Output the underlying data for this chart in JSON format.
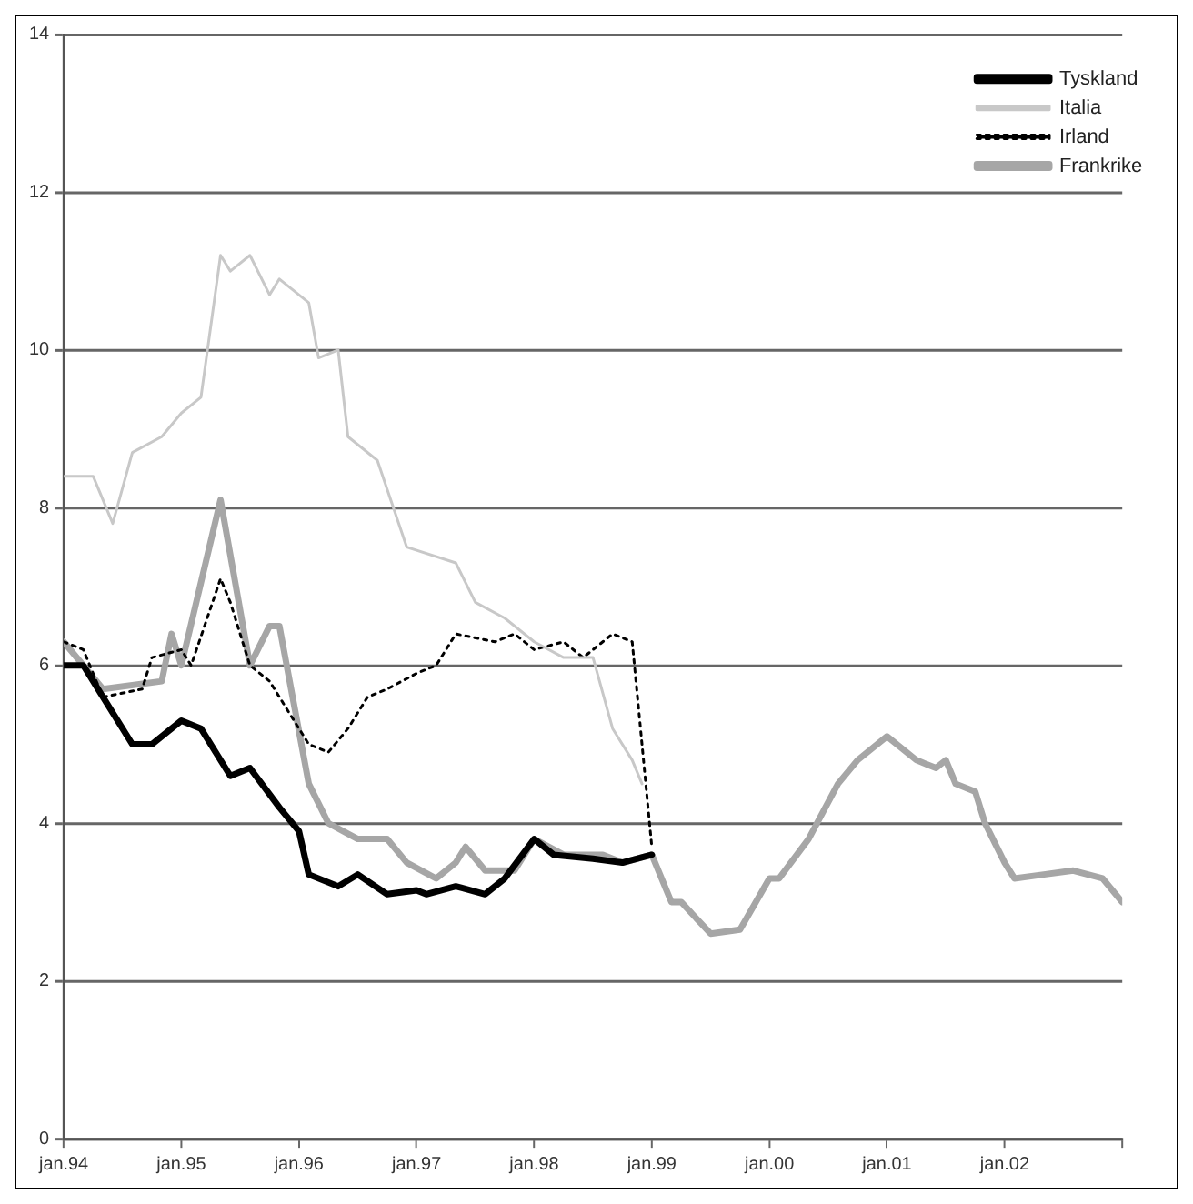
{
  "chart_data": {
    "type": "line",
    "xlim": [
      "1994-01",
      "2003-01"
    ],
    "xticks": [
      {
        "value": "1994-01",
        "label": "jan.94"
      },
      {
        "value": "1995-01",
        "label": "jan.95"
      },
      {
        "value": "1996-01",
        "label": "jan.96"
      },
      {
        "value": "1997-01",
        "label": "jan.97"
      },
      {
        "value": "1998-01",
        "label": "jan.98"
      },
      {
        "value": "1999-01",
        "label": "jan.99"
      },
      {
        "value": "2000-01",
        "label": "jan.00"
      },
      {
        "value": "2001-01",
        "label": "jan.01"
      },
      {
        "value": "2002-01",
        "label": "jan.02"
      },
      {
        "value": "2003-01",
        "label": null
      }
    ],
    "ylim": [
      0,
      14
    ],
    "yticks": [
      0,
      2,
      4,
      6,
      8,
      10,
      12,
      14
    ],
    "grid": "y",
    "legend": "top right",
    "marker": "none",
    "series": [
      {
        "name": "Tyskland",
        "color": "#000000",
        "line_style": "solid",
        "x": [
          "1994-01",
          "1994-03",
          "1994-08",
          "1994-10",
          "1995-01",
          "1995-03",
          "1995-06",
          "1995-08",
          "1995-11",
          "1996-01",
          "1996-02",
          "1996-05",
          "1996-07",
          "1996-10",
          "1997-01",
          "1997-02",
          "1997-05",
          "1997-08",
          "1997-10",
          "1998-01",
          "1998-03",
          "1998-07",
          "1998-10",
          "1999-01"
        ],
        "values": [
          6.0,
          6.0,
          5.0,
          5.0,
          5.3,
          5.2,
          4.6,
          4.7,
          4.2,
          3.9,
          3.35,
          3.2,
          3.35,
          3.1,
          3.15,
          3.1,
          3.2,
          3.1,
          3.3,
          3.8,
          3.6,
          3.55,
          3.5,
          3.6
        ]
      },
      {
        "name": "Italia",
        "color": "#c8c8c8",
        "line_style": "solid",
        "x": [
          "1994-01",
          "1994-04",
          "1994-06",
          "1994-08",
          "1994-11",
          "1995-01",
          "1995-03",
          "1995-05",
          "1995-06",
          "1995-08",
          "1995-10",
          "1995-11",
          "1996-02",
          "1996-03",
          "1996-05",
          "1996-06",
          "1996-09",
          "1996-12",
          "1997-05",
          "1997-07",
          "1997-10",
          "1998-01",
          "1998-04",
          "1998-07",
          "1998-09",
          "1998-11",
          "1998-12"
        ],
        "values": [
          8.4,
          8.4,
          7.8,
          8.7,
          8.9,
          9.2,
          9.4,
          11.2,
          11.0,
          11.2,
          10.7,
          10.9,
          10.6,
          9.9,
          10.0,
          8.9,
          8.6,
          7.5,
          7.3,
          6.8,
          6.6,
          6.3,
          6.1,
          6.1,
          5.2,
          4.8,
          4.5
        ]
      },
      {
        "name": "Irland",
        "color": "#000000",
        "line_style": "dotted",
        "x": [
          "1994-01",
          "1994-03",
          "1994-05",
          "1994-09",
          "1994-10",
          "1995-01",
          "1995-02",
          "1995-05",
          "1995-06",
          "1995-08",
          "1995-10",
          "1995-12",
          "1996-02",
          "1996-04",
          "1996-06",
          "1996-08",
          "1996-10",
          "1997-01",
          "1997-03",
          "1997-05",
          "1997-09",
          "1997-11",
          "1998-01",
          "1998-04",
          "1998-06",
          "1998-09",
          "1998-11",
          "1998-12",
          "1999-01"
        ],
        "values": [
          6.3,
          6.2,
          5.6,
          5.7,
          6.1,
          6.2,
          6.0,
          7.1,
          6.8,
          6.0,
          5.8,
          5.4,
          5.0,
          4.9,
          5.2,
          5.6,
          5.7,
          5.9,
          6.0,
          6.4,
          6.3,
          6.4,
          6.2,
          6.3,
          6.1,
          6.4,
          6.3,
          5.0,
          3.7
        ]
      },
      {
        "name": "Frankrike",
        "color": "#a6a6a6",
        "line_style": "solid",
        "x": [
          "1994-01",
          "1994-05",
          "1994-11",
          "1994-12",
          "1995-01",
          "1995-05",
          "1995-08",
          "1995-10",
          "1995-11",
          "1996-02",
          "1996-04",
          "1996-07",
          "1996-10",
          "1996-12",
          "1997-03",
          "1997-05",
          "1997-06",
          "1997-08",
          "1997-11",
          "1998-01",
          "1998-04",
          "1998-08",
          "1998-10",
          "1999-01",
          "1999-03",
          "1999-04",
          "1999-07",
          "1999-10",
          "2000-01",
          "2000-02",
          "2000-05",
          "2000-08",
          "2000-10",
          "2001-01",
          "2001-04",
          "2001-06",
          "2001-07",
          "2001-08",
          "2001-10",
          "2001-11",
          "2002-01",
          "2002-02",
          "2002-05",
          "2002-08",
          "2002-11",
          "2003-01"
        ],
        "values": [
          6.3,
          5.7,
          5.8,
          6.4,
          6.0,
          8.1,
          6.0,
          6.5,
          6.5,
          4.5,
          4.0,
          3.8,
          3.8,
          3.5,
          3.3,
          3.5,
          3.7,
          3.4,
          3.4,
          3.8,
          3.6,
          3.6,
          3.5,
          3.6,
          3.0,
          3.0,
          2.6,
          2.65,
          3.3,
          3.3,
          3.8,
          4.5,
          4.8,
          5.1,
          4.8,
          4.7,
          4.8,
          4.5,
          4.4,
          4.0,
          3.5,
          3.3,
          3.35,
          3.4,
          3.3,
          3.0
        ]
      }
    ]
  }
}
